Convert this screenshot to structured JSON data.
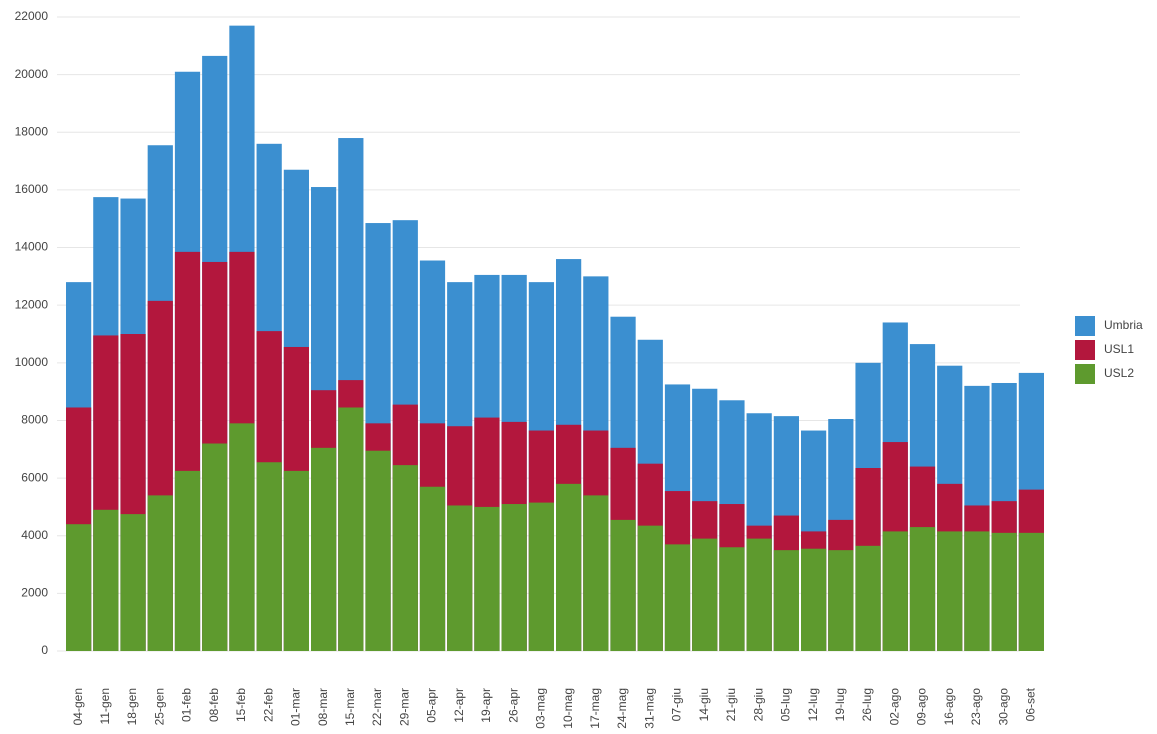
{
  "chart_data": {
    "type": "bar",
    "categories": [
      "04-gen",
      "11-gen",
      "18-gen",
      "25-gen",
      "01-feb",
      "08-feb",
      "15-feb",
      "22-feb",
      "01-mar",
      "08-mar",
      "15-mar",
      "22-mar",
      "29-mar",
      "05-apr",
      "12-apr",
      "19-apr",
      "26-apr",
      "03-mag",
      "10-mag",
      "17-mag",
      "24-mag",
      "31-mag",
      "07-giu",
      "14-giu",
      "21-giu",
      "28-giu",
      "05-lug",
      "12-lug",
      "19-lug",
      "26-lug",
      "02-ago",
      "09-ago",
      "16-ago",
      "23-ago",
      "30-ago",
      "06-set"
    ],
    "series": [
      {
        "name": "Umbria",
        "color": "#3b8fd0",
        "values": [
          12800,
          15750,
          15700,
          17550,
          20100,
          20650,
          21700,
          17600,
          16700,
          16100,
          17800,
          14850,
          14950,
          13550,
          12800,
          13050,
          13050,
          12800,
          13600,
          13000,
          11600,
          10800,
          9250,
          9100,
          8700,
          8250,
          8150,
          7650,
          8050,
          10000,
          11400,
          10650,
          9900,
          9200,
          9300,
          9650
        ]
      },
      {
        "name": "USL1",
        "color": "#b3173d",
        "values": [
          8450,
          10950,
          11000,
          12150,
          13850,
          13500,
          13850,
          11100,
          10550,
          9050,
          9400,
          7900,
          8550,
          7900,
          7800,
          8100,
          7950,
          7650,
          7850,
          7650,
          7050,
          6500,
          5550,
          5200,
          5100,
          4350,
          4700,
          4150,
          4550,
          6350,
          7250,
          6400,
          5800,
          5050,
          5200,
          5600
        ]
      },
      {
        "name": "USL2",
        "color": "#5e9a2e",
        "values": [
          4400,
          4900,
          4750,
          5400,
          6250,
          7200,
          7900,
          6550,
          6250,
          7050,
          8450,
          6950,
          6450,
          5700,
          5050,
          5000,
          5100,
          5150,
          5800,
          5400,
          4550,
          4350,
          3700,
          3900,
          3600,
          3900,
          3500,
          3550,
          3500,
          3650,
          4150,
          4300,
          4150,
          4150,
          4100,
          4100
        ]
      }
    ],
    "ylim": [
      0,
      22000
    ],
    "yticks": [
      0,
      2000,
      4000,
      6000,
      8000,
      10000,
      12000,
      14000,
      16000,
      18000,
      20000,
      22000
    ],
    "grid": true,
    "legend": "right"
  }
}
